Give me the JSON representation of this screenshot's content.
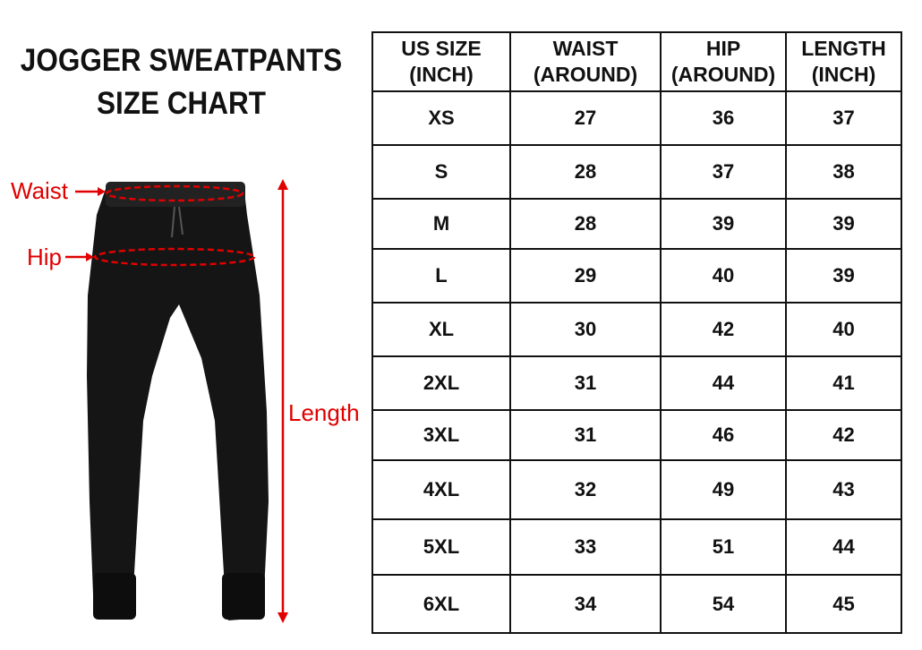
{
  "title": {
    "line1": "JOGGER SWEATPANTS",
    "line2": "SIZE CHART"
  },
  "labels": {
    "waist": "Waist",
    "hip": "Hip",
    "length": "Length"
  },
  "colors": {
    "accent": "#e00000",
    "text": "#111111"
  },
  "table": {
    "headers": [
      "US SIZE (INCH)",
      "WAIST (AROUND)",
      "HIP (AROUND)",
      "LENGTH (INCH)"
    ],
    "header_lines": [
      [
        "US SIZE",
        "(INCH)"
      ],
      [
        "WAIST",
        "(AROUND)"
      ],
      [
        "HIP",
        "(AROUND)"
      ],
      [
        "LENGTH",
        "(INCH)"
      ]
    ],
    "rows": [
      [
        "XS",
        "27",
        "36",
        "37"
      ],
      [
        "S",
        "28",
        "37",
        "38"
      ],
      [
        "M",
        "28",
        "39",
        "39"
      ],
      [
        "L",
        "29",
        "40",
        "39"
      ],
      [
        "XL",
        "30",
        "42",
        "40"
      ],
      [
        "2XL",
        "31",
        "44",
        "41"
      ],
      [
        "3XL",
        "31",
        "46",
        "42"
      ],
      [
        "4XL",
        "32",
        "49",
        "43"
      ],
      [
        "5XL",
        "33",
        "51",
        "44"
      ],
      [
        "6XL",
        "34",
        "54",
        "45"
      ]
    ]
  }
}
